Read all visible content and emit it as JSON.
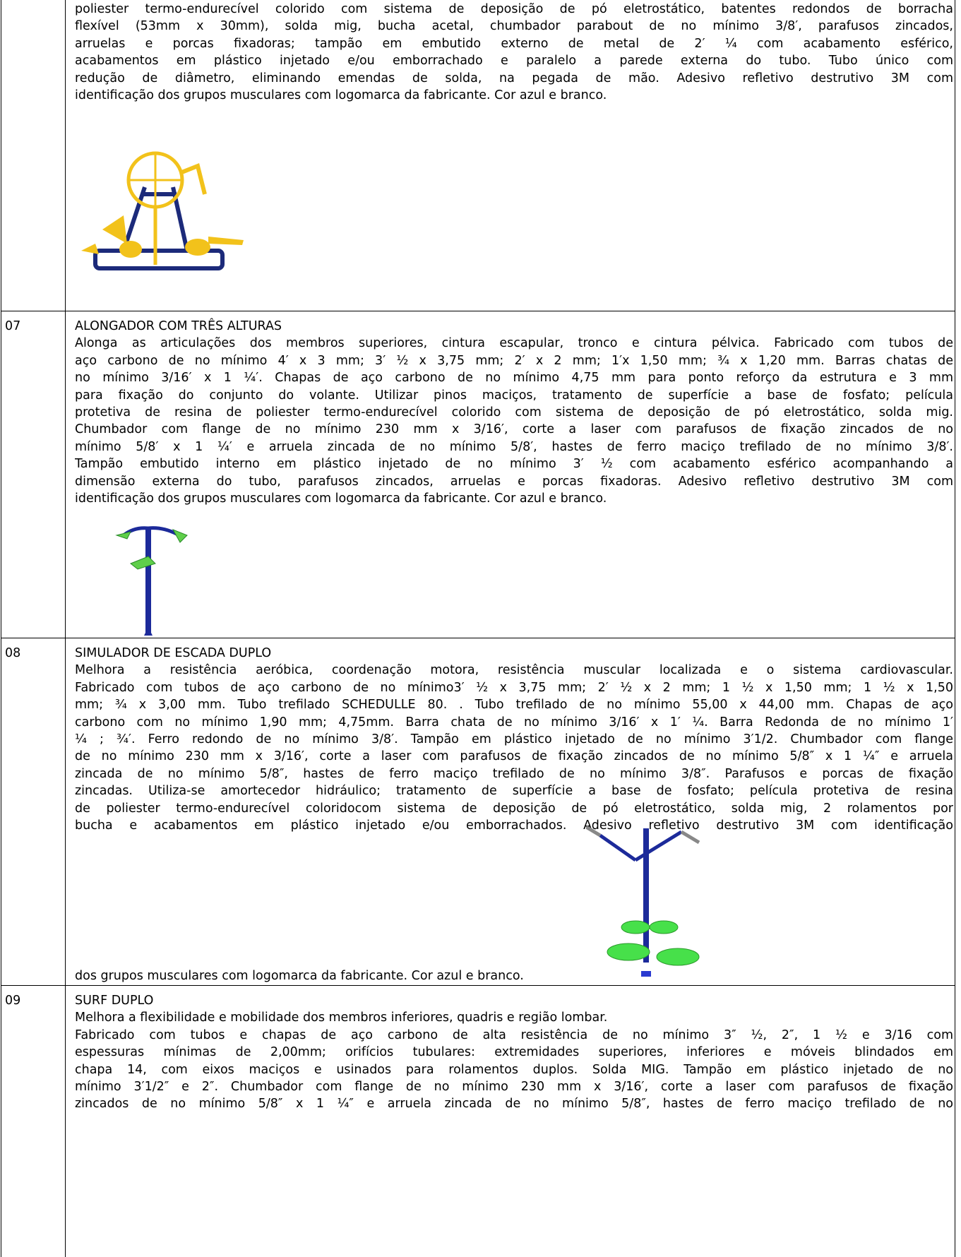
{
  "rows": [
    {
      "paragraphs": [
        [
          "poliester termo-endurecível colorido com sistema de deposição de pó eletrostático, batentes redondos de borracha",
          "flexível (53mm x 30mm), solda mig, bucha acetal, chumbador parabout de no mínimo 3/8′, parafusos zincados,",
          "arruelas e porcas fixadoras; tampão em embutido externo de metal de 2′ ¼ com acabamento esférico,",
          "acabamentos em plástico injetado e/ou emborrachado e paralelo a parede externa do tubo. Tubo único com",
          "redução de diâmetro, eliminando emendas de solda, na pegada de mão. Adesivo refletivo destrutivo 3M com",
          "identificação dos grupos musculares com logomarca da fabricante. Cor azul e branco."
        ]
      ]
    },
    {
      "number": "07",
      "title": "ALONGADOR COM TRÊS ALTURAS",
      "paragraphs": [
        [
          "Alonga as articulações dos membros superiores, cintura escapular, tronco e cintura pélvica. Fabricado com tubos de",
          "aço carbono de no mínimo 4′ x 3 mm; 3′ ½ x 3,75 mm; 2′ x 2 mm; 1′x 1,50 mm; ¾ x 1,20 mm. Barras chatas de",
          "no mínimo 3/16′ x 1 ¼′. Chapas de aço carbono de no mínimo 4,75 mm para ponto reforço da estrutura e 3 mm",
          "para fixação do conjunto do volante. Utilizar pinos maciços, tratamento de superfície a base de fosfato; película",
          "protetiva de resina de poliester termo-endurecível colorido com sistema de deposição de pó eletrostático, solda mig.",
          "Chumbador com flange de no mínimo 230 mm x 3/16′, corte a laser com parafusos de fixação zincados de no",
          "mínimo 5/8′ x 1 ¼′ e arruela zincada de no mínimo 5/8′, hastes de ferro maciço trefilado de no mínimo 3/8′.",
          "Tampão embutido interno em plástico injetado de no mínimo 3′ ½ com acabamento esférico acompanhando a",
          "dimensão externa do tubo, parafusos zincados, arruelas e porcas fixadoras. Adesivo refletivo destrutivo 3M com",
          "identificação dos grupos musculares com logomarca da fabricante. Cor azul e branco."
        ]
      ]
    },
    {
      "number": "08",
      "title": "SIMULADOR DE ESCADA DUPLO",
      "paragraphs": [
        [
          "Melhora a resistência aeróbica, coordenação motora, resistência muscular localizada e o sistema cardiovascular.",
          "Fabricado com tubos de aço carbono de no mínimo3′ ½ x 3,75 mm; 2′ ½ x 2 mm; 1 ½ x 1,50 mm; 1 ½ x 1,50",
          "mm; ¾ x 3,00 mm. Tubo trefilado SCHEDULLE 80. . Tubo trefilado de no mínimo 55,00 x 44,00 mm. Chapas de aço",
          "carbono com no mínimo 1,90 mm; 4,75mm. Barra chata de no mínimo 3/16′ x 1′ ¼. Barra Redonda de no mínimo 1′",
          "¼ ; ¾′. Ferro redondo de no mínimo 3/8′. Tampão em plástico injetado de no mínimo 3′1/2. Chumbador com flange",
          "de no mínimo 230 mm x 3/16′, corte a laser com parafusos de fixação zincados de no mínimo 5/8″ x 1 ¼″ e arruela",
          "zincada de no mínimo 5/8″, hastes de ferro maciço trefilado de no mínimo 3/8″. Parafusos e porcas de fixação",
          "zincadas. Utiliza-se amortecedor hidráulico; tratamento de superfície a base de fosfato; película protetiva de resina",
          "de poliester termo-endurecível coloridocom sistema de deposição de pó eletrostático, solda mig, 2 rolamentos por",
          "bucha e acabamentos em plástico injetado e/ou emborrachados. Adesivo refletivo destrutivo 3M com identificação",
          "dos grupos musculares com logomarca da fabricante. Cor azul e branco."
        ]
      ]
    },
    {
      "number": "09",
      "title": "SURF DUPLO",
      "paragraphs": [
        [
          "Melhora a flexibilidade e mobilidade dos membros inferiores, quadris e região lombar."
        ],
        [
          "Fabricado com tubos e chapas de aço carbono de alta resistência de no mínimo 3″ ½, 2″, 1 ½ e 3/16 com",
          "espessuras mínimas de 2,00mm; orifícios tubulares: extremidades superiores, inferiores e móveis blindados em",
          "chapa 14,  com eixos maciços e usinados para rolamentos duplos. Solda MIG. Tampão em plástico injetado de no",
          "mínimo 3′1/2″ e 2″. Chumbador com flange de no mínimo 230 mm x 3/16′, corte a laser com parafusos de fixação",
          "zincados de no mínimo 5/8″ x 1 ¼″ e arruela zincada de no mínimo 5/8″, hastes de ferro maciço trefilado de no"
        ]
      ]
    }
  ]
}
